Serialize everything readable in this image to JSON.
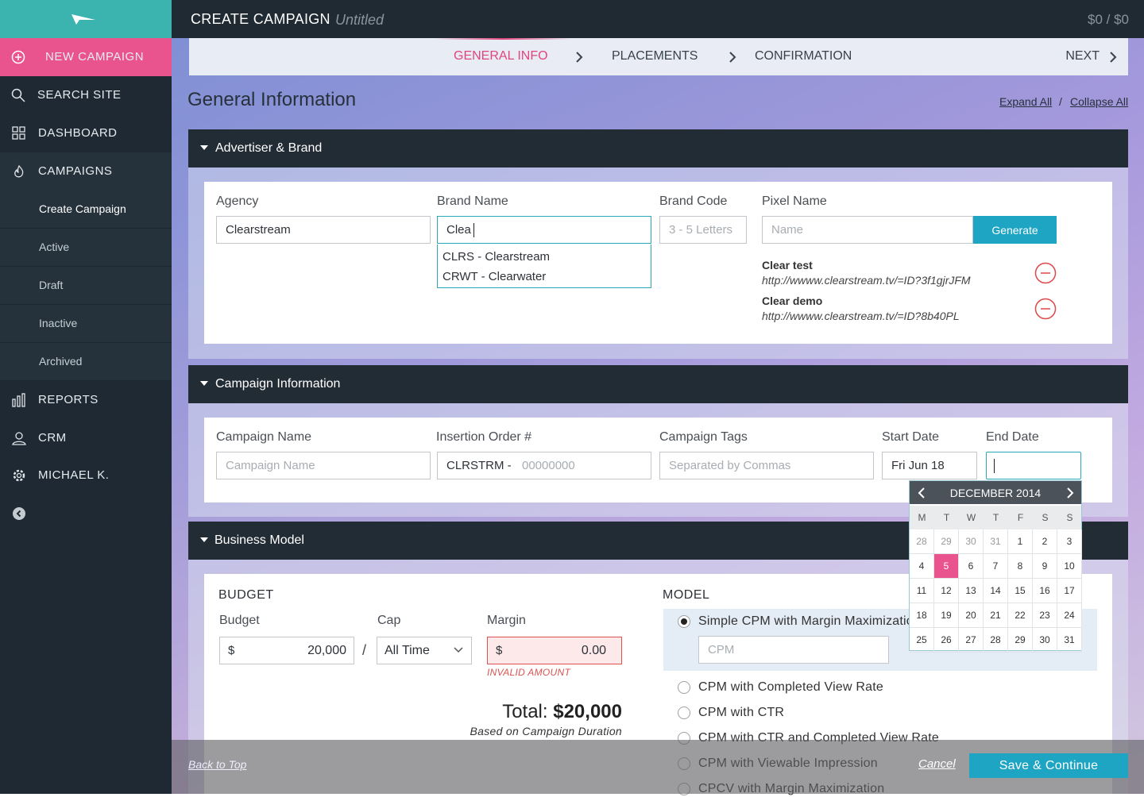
{
  "sidebar": {
    "nav": [
      "NEW CAMPAIGN",
      "SEARCH SITE",
      "DASHBOARD",
      "CAMPAIGNS"
    ],
    "sub_nav": [
      "Create Campaign",
      "Active",
      "Draft",
      "Inactive",
      "Archived"
    ],
    "nav_bottom": [
      "REPORTS",
      "CRM",
      "MICHAEL K."
    ]
  },
  "header": {
    "title": "CREATE CAMPAIGN",
    "subtitle": "Untitled",
    "balance": "$0 / $0"
  },
  "steps": {
    "items": [
      "GENERAL INFO",
      "PLACEMENTS",
      "CONFIRMATION"
    ],
    "next": "NEXT"
  },
  "page": {
    "title": "General Information",
    "expand_all": "Expand All",
    "separator": "/",
    "collapse_all": "Collapse All"
  },
  "advertiser": {
    "title": "Advertiser & Brand",
    "agency_label": "Agency",
    "agency_value": "Clearstream",
    "brand_label": "Brand Name",
    "brand_value": "Clea",
    "suggestions": [
      "CLRS - Clearstream",
      "CRWT - Clearwater"
    ],
    "code_label": "Brand Code",
    "code_placeholder": "3 - 5 Letters",
    "pixel_label": "Pixel Name",
    "pixel_placeholder": "Name",
    "generate": "Generate",
    "pixels": [
      {
        "name": "Clear test",
        "url": "http://wwww.clearstream.tv/=ID?3f1gjrJFM"
      },
      {
        "name": "Clear demo",
        "url": "http://wwww.clearstream.tv/=ID?8b40PL"
      }
    ]
  },
  "campaign": {
    "title": "Campaign Information",
    "name_label": "Campaign Name",
    "name_placeholder": "Campaign Name",
    "io_label": "Insertion Order #",
    "io_prefix": "CLRSTRM -",
    "io_placeholder": "00000000",
    "tags_label": "Campaign Tags",
    "tags_placeholder": "Separated by Commas",
    "start_label": "Start Date",
    "start_value": "Fri Jun 18",
    "end_label": "End Date"
  },
  "calendar": {
    "month": "DECEMBER 2014",
    "weekdays": [
      "M",
      "T",
      "W",
      "T",
      "F",
      "S",
      "S"
    ],
    "weeks": [
      [
        28,
        29,
        30,
        31,
        1,
        2,
        3
      ],
      [
        4,
        5,
        6,
        7,
        8,
        9,
        10
      ],
      [
        11,
        12,
        13,
        14,
        15,
        16,
        17
      ],
      [
        18,
        19,
        20,
        21,
        22,
        23,
        24
      ],
      [
        25,
        26,
        27,
        28,
        29,
        30,
        31
      ]
    ],
    "selected_day": 5
  },
  "business": {
    "title": "Business Model",
    "budget_heading": "BUDGET",
    "budget_label": "Budget",
    "currency": "$",
    "budget_value": "20,000",
    "separator": "/",
    "cap_label": "Cap",
    "cap_value": "All Time",
    "margin_label": "Margin",
    "margin_value": "0.00",
    "margin_error": "INVALID AMOUNT",
    "total_label": "Total:",
    "total_value": "$20,000",
    "total_note": "Based on Campaign Duration",
    "model_heading": "MODEL",
    "models": [
      "Simple CPM with Margin Maximization",
      "CPM with Completed View Rate",
      "CPM with CTR",
      "CPM with CTR and Completed View Rate",
      "CPM with Viewable Impression",
      "CPCV with Margin Maximization"
    ],
    "selected_model": 0,
    "cpm_placeholder": "CPM"
  },
  "footer": {
    "back_to_top": "Back to Top",
    "cancel": "Cancel",
    "save": "Save & Continue"
  }
}
